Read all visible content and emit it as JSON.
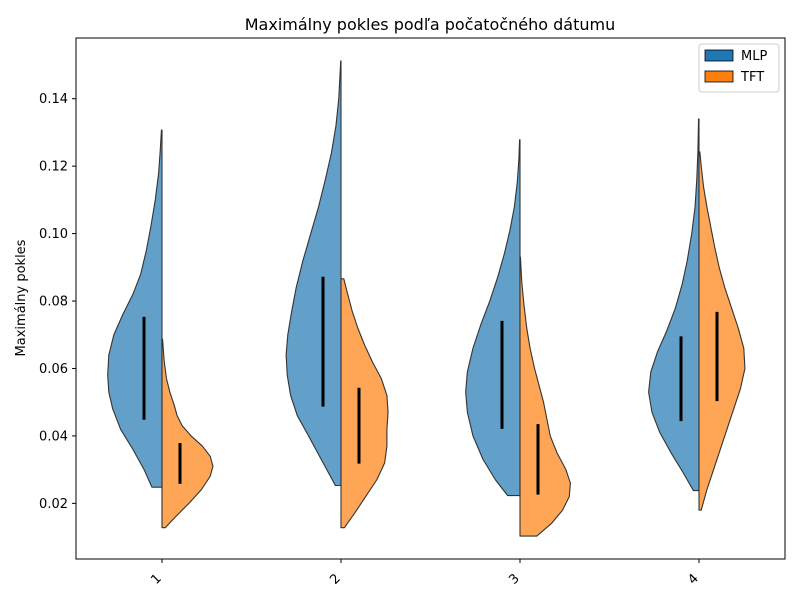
{
  "chart_data": {
    "type": "violin",
    "title": "Maximálny pokles podľa počatočného dátumu",
    "xlabel": "",
    "ylabel": "Maximálny pokles",
    "categories": [
      "1",
      "2",
      "3",
      "4"
    ],
    "ylim": [
      0.0035,
      0.158
    ],
    "yticks": [
      0.02,
      0.04,
      0.06,
      0.08,
      0.1,
      0.12,
      0.14
    ],
    "ytick_labels": [
      "0.02",
      "0.04",
      "0.06",
      "0.08",
      "0.10",
      "0.12",
      "0.14"
    ],
    "legend": {
      "position": "top-right"
    },
    "colors": {
      "MLP": "#1f77b4",
      "TFT": "#ff7f0e",
      "edge": "#333333",
      "iqr": "#000000"
    },
    "series": [
      {
        "name": "MLP",
        "side": "left",
        "violins": [
          {
            "category": "1",
            "min": 0.0248,
            "max": 0.1307,
            "q1": 0.0448,
            "q3": 0.0753,
            "shape": [
              [
                0.0248,
                0.18
              ],
              [
                0.03,
                0.32
              ],
              [
                0.036,
                0.52
              ],
              [
                0.042,
                0.74
              ],
              [
                0.048,
                0.88
              ],
              [
                0.053,
                0.95
              ],
              [
                0.058,
                0.97
              ],
              [
                0.064,
                0.95
              ],
              [
                0.07,
                0.86
              ],
              [
                0.076,
                0.7
              ],
              [
                0.082,
                0.52
              ],
              [
                0.088,
                0.38
              ],
              [
                0.095,
                0.28
              ],
              [
                0.102,
                0.2
              ],
              [
                0.11,
                0.12
              ],
              [
                0.118,
                0.06
              ],
              [
                0.125,
                0.03
              ],
              [
                0.1307,
                0.01
              ]
            ]
          },
          {
            "category": "2",
            "min": 0.0253,
            "max": 0.1512,
            "q1": 0.0487,
            "q3": 0.0872,
            "shape": [
              [
                0.0253,
                0.1
              ],
              [
                0.032,
                0.32
              ],
              [
                0.04,
                0.58
              ],
              [
                0.046,
                0.78
              ],
              [
                0.052,
                0.9
              ],
              [
                0.058,
                0.96
              ],
              [
                0.064,
                0.98
              ],
              [
                0.07,
                0.95
              ],
              [
                0.077,
                0.88
              ],
              [
                0.084,
                0.8
              ],
              [
                0.092,
                0.68
              ],
              [
                0.1,
                0.54
              ],
              [
                0.108,
                0.4
              ],
              [
                0.116,
                0.28
              ],
              [
                0.124,
                0.17
              ],
              [
                0.132,
                0.09
              ],
              [
                0.14,
                0.04
              ],
              [
                0.148,
                0.015
              ],
              [
                0.1512,
                0.005
              ]
            ]
          },
          {
            "category": "3",
            "min": 0.0223,
            "max": 0.1278,
            "q1": 0.0421,
            "q3": 0.0741,
            "shape": [
              [
                0.0223,
                0.22
              ],
              [
                0.027,
                0.44
              ],
              [
                0.033,
                0.66
              ],
              [
                0.04,
                0.84
              ],
              [
                0.047,
                0.94
              ],
              [
                0.053,
                0.97
              ],
              [
                0.059,
                0.94
              ],
              [
                0.066,
                0.84
              ],
              [
                0.073,
                0.7
              ],
              [
                0.08,
                0.54
              ],
              [
                0.087,
                0.4
              ],
              [
                0.094,
                0.28
              ],
              [
                0.101,
                0.18
              ],
              [
                0.108,
                0.1
              ],
              [
                0.115,
                0.05
              ],
              [
                0.122,
                0.02
              ],
              [
                0.1278,
                0.008
              ]
            ]
          },
          {
            "category": "4",
            "min": 0.0238,
            "max": 0.134,
            "q1": 0.0444,
            "q3": 0.0695,
            "shape": [
              [
                0.0238,
                0.1
              ],
              [
                0.029,
                0.28
              ],
              [
                0.035,
                0.5
              ],
              [
                0.041,
                0.7
              ],
              [
                0.047,
                0.84
              ],
              [
                0.053,
                0.9
              ],
              [
                0.059,
                0.86
              ],
              [
                0.065,
                0.74
              ],
              [
                0.071,
                0.58
              ],
              [
                0.078,
                0.42
              ],
              [
                0.085,
                0.3
              ],
              [
                0.092,
                0.21
              ],
              [
                0.1,
                0.13
              ],
              [
                0.108,
                0.07
              ],
              [
                0.116,
                0.04
              ],
              [
                0.124,
                0.02
              ],
              [
                0.134,
                0.008
              ]
            ]
          }
        ]
      },
      {
        "name": "TFT",
        "side": "right",
        "violins": [
          {
            "category": "1",
            "min": 0.0128,
            "max": 0.0687,
            "q1": 0.0258,
            "q3": 0.0379,
            "shape": [
              [
                0.0128,
                0.06
              ],
              [
                0.016,
                0.24
              ],
              [
                0.02,
                0.48
              ],
              [
                0.024,
                0.7
              ],
              [
                0.028,
                0.86
              ],
              [
                0.031,
                0.91
              ],
              [
                0.034,
                0.86
              ],
              [
                0.037,
                0.72
              ],
              [
                0.04,
                0.52
              ],
              [
                0.043,
                0.36
              ],
              [
                0.046,
                0.27
              ],
              [
                0.049,
                0.22
              ],
              [
                0.053,
                0.14
              ],
              [
                0.057,
                0.08
              ],
              [
                0.062,
                0.04
              ],
              [
                0.0687,
                0.01
              ]
            ]
          },
          {
            "category": "2",
            "min": 0.0128,
            "max": 0.0866,
            "q1": 0.0318,
            "q3": 0.0543,
            "shape": [
              [
                0.0128,
                0.06
              ],
              [
                0.017,
                0.24
              ],
              [
                0.022,
                0.44
              ],
              [
                0.027,
                0.64
              ],
              [
                0.032,
                0.78
              ],
              [
                0.037,
                0.82
              ],
              [
                0.042,
                0.82
              ],
              [
                0.047,
                0.84
              ],
              [
                0.052,
                0.82
              ],
              [
                0.057,
                0.72
              ],
              [
                0.062,
                0.56
              ],
              [
                0.067,
                0.42
              ],
              [
                0.072,
                0.3
              ],
              [
                0.077,
                0.2
              ],
              [
                0.082,
                0.12
              ],
              [
                0.0866,
                0.05
              ]
            ]
          },
          {
            "category": "3",
            "min": 0.0103,
            "max": 0.093,
            "q1": 0.0226,
            "q3": 0.0435,
            "shape": [
              [
                0.0103,
                0.3
              ],
              [
                0.014,
                0.56
              ],
              [
                0.018,
                0.76
              ],
              [
                0.022,
                0.88
              ],
              [
                0.026,
                0.9
              ],
              [
                0.03,
                0.82
              ],
              [
                0.035,
                0.66
              ],
              [
                0.04,
                0.54
              ],
              [
                0.045,
                0.48
              ],
              [
                0.05,
                0.42
              ],
              [
                0.055,
                0.34
              ],
              [
                0.06,
                0.26
              ],
              [
                0.066,
                0.18
              ],
              [
                0.072,
                0.12
              ],
              [
                0.079,
                0.07
              ],
              [
                0.086,
                0.03
              ],
              [
                0.093,
                0.008
              ]
            ]
          },
          {
            "category": "4",
            "min": 0.018,
            "max": 0.1242,
            "q1": 0.0503,
            "q3": 0.0768,
            "shape": [
              [
                0.018,
                0.04
              ],
              [
                0.024,
                0.14
              ],
              [
                0.03,
                0.26
              ],
              [
                0.036,
                0.38
              ],
              [
                0.042,
                0.5
              ],
              [
                0.048,
                0.62
              ],
              [
                0.054,
                0.74
              ],
              [
                0.06,
                0.82
              ],
              [
                0.066,
                0.8
              ],
              [
                0.072,
                0.7
              ],
              [
                0.078,
                0.58
              ],
              [
                0.084,
                0.46
              ],
              [
                0.09,
                0.36
              ],
              [
                0.096,
                0.28
              ],
              [
                0.102,
                0.21
              ],
              [
                0.108,
                0.14
              ],
              [
                0.114,
                0.08
              ],
              [
                0.12,
                0.04
              ],
              [
                0.1242,
                0.015
              ]
            ]
          }
        ]
      }
    ]
  }
}
